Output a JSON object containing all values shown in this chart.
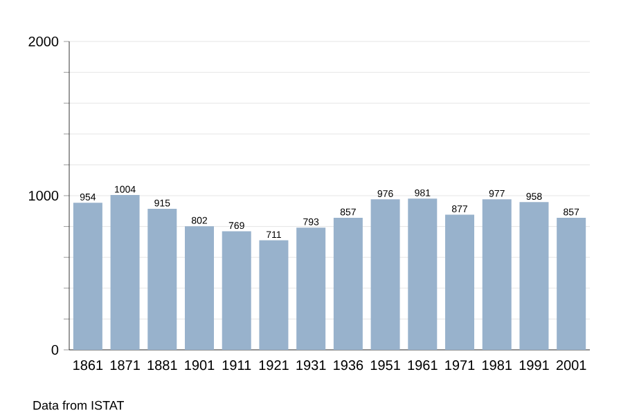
{
  "chart_data": {
    "type": "bar",
    "categories": [
      "1861",
      "1871",
      "1881",
      "1901",
      "1911",
      "1921",
      "1931",
      "1936",
      "1951",
      "1961",
      "1971",
      "1981",
      "1991",
      "2001"
    ],
    "values": [
      954,
      1004,
      915,
      802,
      769,
      711,
      793,
      857,
      976,
      981,
      877,
      977,
      958,
      857
    ],
    "color": "#98b2cc",
    "ylim": [
      0,
      2000
    ],
    "yticks": [
      0,
      {
        "value": 200,
        "label": null
      },
      {
        "value": 400,
        "label": null
      },
      {
        "value": 600,
        "label": null
      },
      {
        "value": 800,
        "label": null
      },
      1000,
      {
        "value": 1200,
        "label": null
      },
      {
        "value": 1400,
        "label": null
      },
      {
        "value": 1600,
        "label": null
      },
      {
        "value": 1800,
        "label": null
      },
      2000
    ],
    "grid": "y",
    "data_labels": true,
    "annotations": [
      "Data from ISTAT"
    ]
  }
}
